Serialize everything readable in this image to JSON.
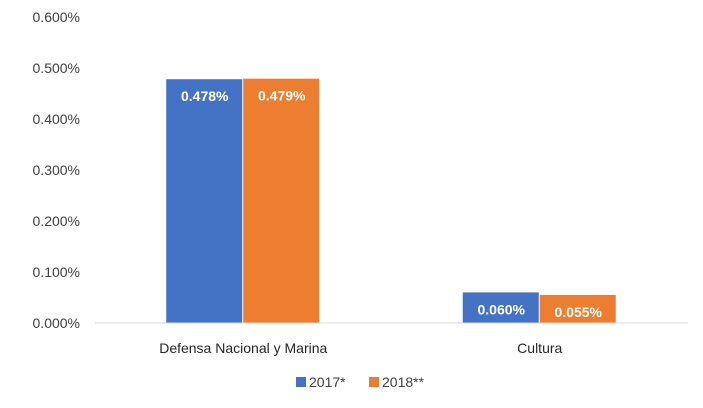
{
  "chart_data": {
    "type": "bar",
    "categories": [
      "Defensa Nacional y Marina",
      "Cultura"
    ],
    "series": [
      {
        "name": "2017*",
        "values": [
          0.478,
          0.06
        ],
        "labels": [
          "0.478%",
          "0.060%"
        ],
        "color": "#4472C4"
      },
      {
        "name": "2018**",
        "values": [
          0.479,
          0.055
        ],
        "labels": [
          "0.479%",
          "0.055%"
        ],
        "color": "#ED7D31"
      }
    ],
    "ylim": [
      0,
      0.6
    ],
    "yticks": [
      0.0,
      0.1,
      0.2,
      0.3,
      0.4,
      0.5,
      0.6
    ],
    "ytick_labels": [
      "0.000%",
      "0.100%",
      "0.200%",
      "0.300%",
      "0.400%",
      "0.500%",
      "0.600%"
    ],
    "grid": false,
    "legend": "bottom",
    "title": "",
    "xlabel": "",
    "ylabel": ""
  }
}
